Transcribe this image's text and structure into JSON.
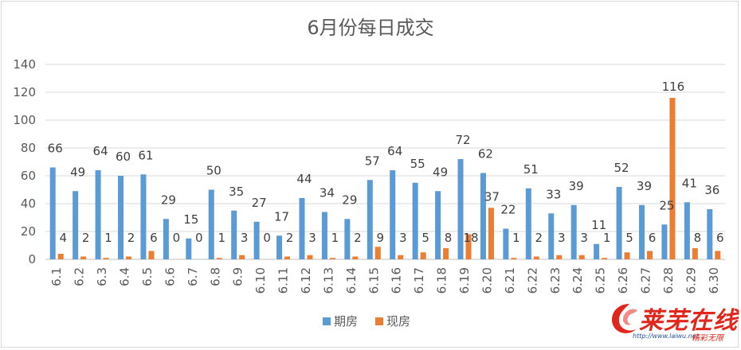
{
  "chart_data": {
    "type": "bar",
    "title": "6月份每日成交",
    "categories": [
      "6.1",
      "6.2",
      "6.3",
      "6.4",
      "6.5",
      "6.6",
      "6.7",
      "6.8",
      "6.9",
      "6.10",
      "6.11",
      "6.12",
      "6.13",
      "6.14",
      "6.15",
      "6.16",
      "6.17",
      "6.18",
      "6.19",
      "6.20",
      "6.21",
      "6.22",
      "6.23",
      "6.24",
      "6.25",
      "6.26",
      "6.27",
      "6.28",
      "6.29",
      "6.30"
    ],
    "series": [
      {
        "name": "期房",
        "color": "#5b9bd5",
        "values": [
          66,
          49,
          64,
          60,
          61,
          29,
          15,
          50,
          35,
          27,
          17,
          44,
          34,
          29,
          57,
          64,
          55,
          49,
          72,
          62,
          22,
          51,
          33,
          39,
          11,
          52,
          39,
          25,
          41,
          36
        ]
      },
      {
        "name": "现房",
        "color": "#ed7d31",
        "values": [
          4,
          2,
          1,
          2,
          6,
          0,
          0,
          1,
          3,
          0,
          2,
          3,
          1,
          2,
          9,
          3,
          5,
          8,
          18,
          37,
          1,
          2,
          3,
          3,
          1,
          5,
          6,
          116,
          8,
          6
        ]
      }
    ],
    "ylim": [
      0,
      140
    ],
    "yticks": [
      "0",
      "20",
      "40",
      "60",
      "80",
      "100",
      "120",
      "140"
    ],
    "grid": true,
    "legend_position": "bottom"
  },
  "watermark": {
    "brand": "莱芜在线",
    "url": "http://www.laiwu.net",
    "slogan": "精彩无限"
  }
}
